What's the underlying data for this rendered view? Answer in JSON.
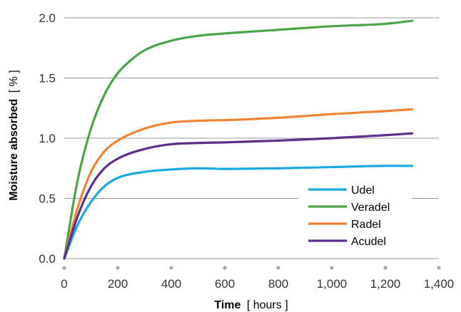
{
  "chart_data": {
    "type": "line",
    "xlabel": {
      "main": "Time",
      "unit": "[ hours ]"
    },
    "ylabel": {
      "main": "Moisture absorbed",
      "unit": "[ % ]"
    },
    "xlim": [
      0,
      1400
    ],
    "ylim": [
      0,
      2.0
    ],
    "x_ticks": [
      0,
      200,
      400,
      600,
      800,
      1000,
      1200,
      1400
    ],
    "x_tick_labels": [
      "0",
      "200",
      "400",
      "600",
      "800",
      "1,000",
      "1,200",
      "1,400"
    ],
    "y_ticks": [
      0.0,
      0.5,
      1.0,
      1.5,
      2.0
    ],
    "y_tick_labels": [
      "0.0",
      "0.5",
      "1.0",
      "1.5",
      "2.0"
    ],
    "grid": "horizontal",
    "legend_position": "bottom-right",
    "series": [
      {
        "name": "Udel",
        "color": "#1ba9e1",
        "points": [
          [
            0,
            0
          ],
          [
            50,
            0.28
          ],
          [
            100,
            0.47
          ],
          [
            150,
            0.6
          ],
          [
            200,
            0.67
          ],
          [
            300,
            0.72
          ],
          [
            400,
            0.74
          ],
          [
            500,
            0.75
          ],
          [
            600,
            0.745
          ],
          [
            800,
            0.75
          ],
          [
            1000,
            0.76
          ],
          [
            1200,
            0.77
          ],
          [
            1300,
            0.77
          ]
        ]
      },
      {
        "name": "Veradel",
        "color": "#4aa548",
        "points": [
          [
            0,
            0
          ],
          [
            50,
            0.65
          ],
          [
            100,
            1.08
          ],
          [
            150,
            1.36
          ],
          [
            200,
            1.54
          ],
          [
            250,
            1.65
          ],
          [
            300,
            1.73
          ],
          [
            400,
            1.81
          ],
          [
            500,
            1.85
          ],
          [
            600,
            1.87
          ],
          [
            800,
            1.9
          ],
          [
            1000,
            1.93
          ],
          [
            1200,
            1.95
          ],
          [
            1300,
            1.975
          ]
        ]
      },
      {
        "name": "Radel",
        "color": "#f08433",
        "points": [
          [
            0,
            0
          ],
          [
            50,
            0.42
          ],
          [
            100,
            0.72
          ],
          [
            150,
            0.89
          ],
          [
            200,
            0.98
          ],
          [
            300,
            1.08
          ],
          [
            400,
            1.13
          ],
          [
            500,
            1.145
          ],
          [
            600,
            1.15
          ],
          [
            800,
            1.17
          ],
          [
            1000,
            1.2
          ],
          [
            1200,
            1.225
          ],
          [
            1300,
            1.24
          ]
        ]
      },
      {
        "name": "Acudel",
        "color": "#5d2e8c",
        "points": [
          [
            0,
            0
          ],
          [
            50,
            0.35
          ],
          [
            100,
            0.6
          ],
          [
            150,
            0.75
          ],
          [
            200,
            0.83
          ],
          [
            300,
            0.91
          ],
          [
            400,
            0.95
          ],
          [
            500,
            0.96
          ],
          [
            600,
            0.965
          ],
          [
            800,
            0.98
          ],
          [
            1000,
            1.0
          ],
          [
            1200,
            1.025
          ],
          [
            1300,
            1.04
          ]
        ]
      }
    ]
  }
}
